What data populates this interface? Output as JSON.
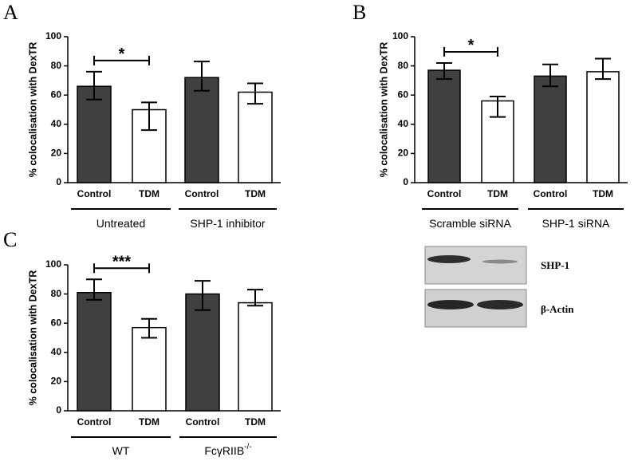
{
  "chart_data": [
    {
      "type": "bar",
      "panel": "A",
      "y_label": "% colocalisation with DexTR",
      "categories": [
        "Control",
        "TDM",
        "Control",
        "TDM"
      ],
      "values": [
        66,
        50,
        72,
        62
      ],
      "err_minus": [
        9,
        14,
        9,
        8
      ],
      "err_plus": [
        10,
        5,
        11,
        6
      ],
      "colors": [
        "#404040",
        "#ffffff",
        "#404040",
        "#ffffff"
      ],
      "groups": [
        {
          "text": "Untreated"
        },
        {
          "text": "SHP-1 inhibitor"
        }
      ],
      "significance": "*",
      "ylim": [
        0,
        100
      ],
      "yticks": [
        0,
        20,
        40,
        60,
        80,
        100
      ]
    },
    {
      "type": "bar",
      "panel": "B",
      "y_label": "% colocalisation with DexTR",
      "categories": [
        "Control",
        "TDM",
        "Control",
        "TDM"
      ],
      "values": [
        77,
        56,
        73,
        76
      ],
      "err_minus": [
        6,
        11,
        7,
        5
      ],
      "err_plus": [
        5,
        3,
        8,
        9
      ],
      "colors": [
        "#404040",
        "#ffffff",
        "#404040",
        "#ffffff"
      ],
      "groups": [
        {
          "text": "Scramble siRNA"
        },
        {
          "text": "SHP-1 siRNA"
        }
      ],
      "significance": "*",
      "ylim": [
        0,
        100
      ],
      "yticks": [
        0,
        20,
        40,
        60,
        80,
        100
      ]
    },
    {
      "type": "bar",
      "panel": "C",
      "y_label": "% colocalisation with DexTR",
      "categories": [
        "Control",
        "TDM",
        "Control",
        "TDM"
      ],
      "values": [
        81,
        57,
        80,
        74
      ],
      "err_minus": [
        5,
        7,
        11,
        2
      ],
      "err_plus": [
        9,
        6,
        9,
        9
      ],
      "colors": [
        "#404040",
        "#ffffff",
        "#404040",
        "#ffffff"
      ],
      "groups": [
        {
          "text": "WT"
        },
        {
          "text": "FcγRIIB",
          "sup": "-/-"
        }
      ],
      "significance": "***",
      "ylim": [
        0,
        100
      ],
      "yticks": [
        0,
        20,
        40,
        60,
        80,
        100
      ]
    }
  ],
  "blot": {
    "labels": [
      "SHP-1",
      "β-Actin"
    ]
  }
}
